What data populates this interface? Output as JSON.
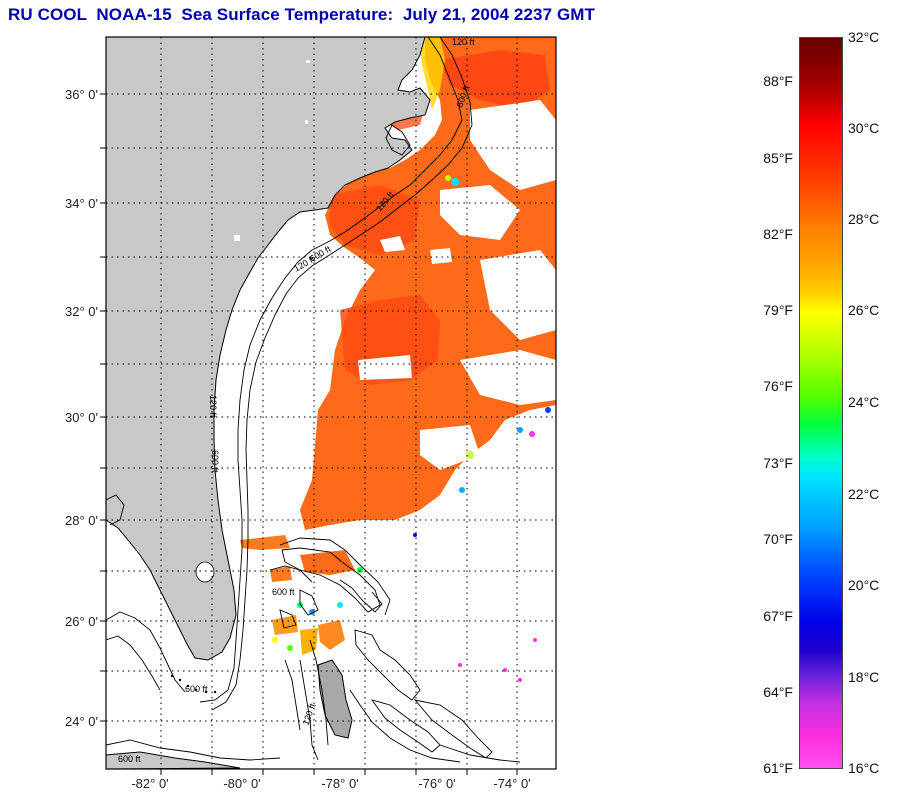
{
  "title": "RU COOL  NOAA-15  Sea Surface Temperature:  July 21, 2004 2237 GMT",
  "map": {
    "lat_labels": [
      "36° 0'",
      "34° 0'",
      "32° 0'",
      "30° 0'",
      "28° 0'",
      "26° 0'",
      "24° 0'"
    ],
    "lon_labels": [
      "-82° 0'",
      "-80° 0'",
      "-78° 0'",
      "-76° 0'",
      "-74° 0'"
    ],
    "contour_labels": [
      "120 ft",
      "600 ft",
      "120 ft",
      "600 ft",
      "120 ft",
      "600 ft",
      "120 ft",
      "600 ft",
      "600 ft",
      "120 ft",
      "600 ft"
    ]
  },
  "colorbar": {
    "fahrenheit": [
      "88°F",
      "85°F",
      "82°F",
      "79°F",
      "76°F",
      "73°F",
      "70°F",
      "67°F",
      "64°F",
      "61°F"
    ],
    "celsius": [
      "32°C",
      "30°C",
      "28°C",
      "26°C",
      "24°C",
      "22°C",
      "20°C",
      "18°C",
      "16°C"
    ]
  },
  "colors": {
    "title": "#0000b0",
    "land": "#c8c8c8",
    "warm_water": "#ff6a1a",
    "hot_water": "#ff3f10"
  }
}
